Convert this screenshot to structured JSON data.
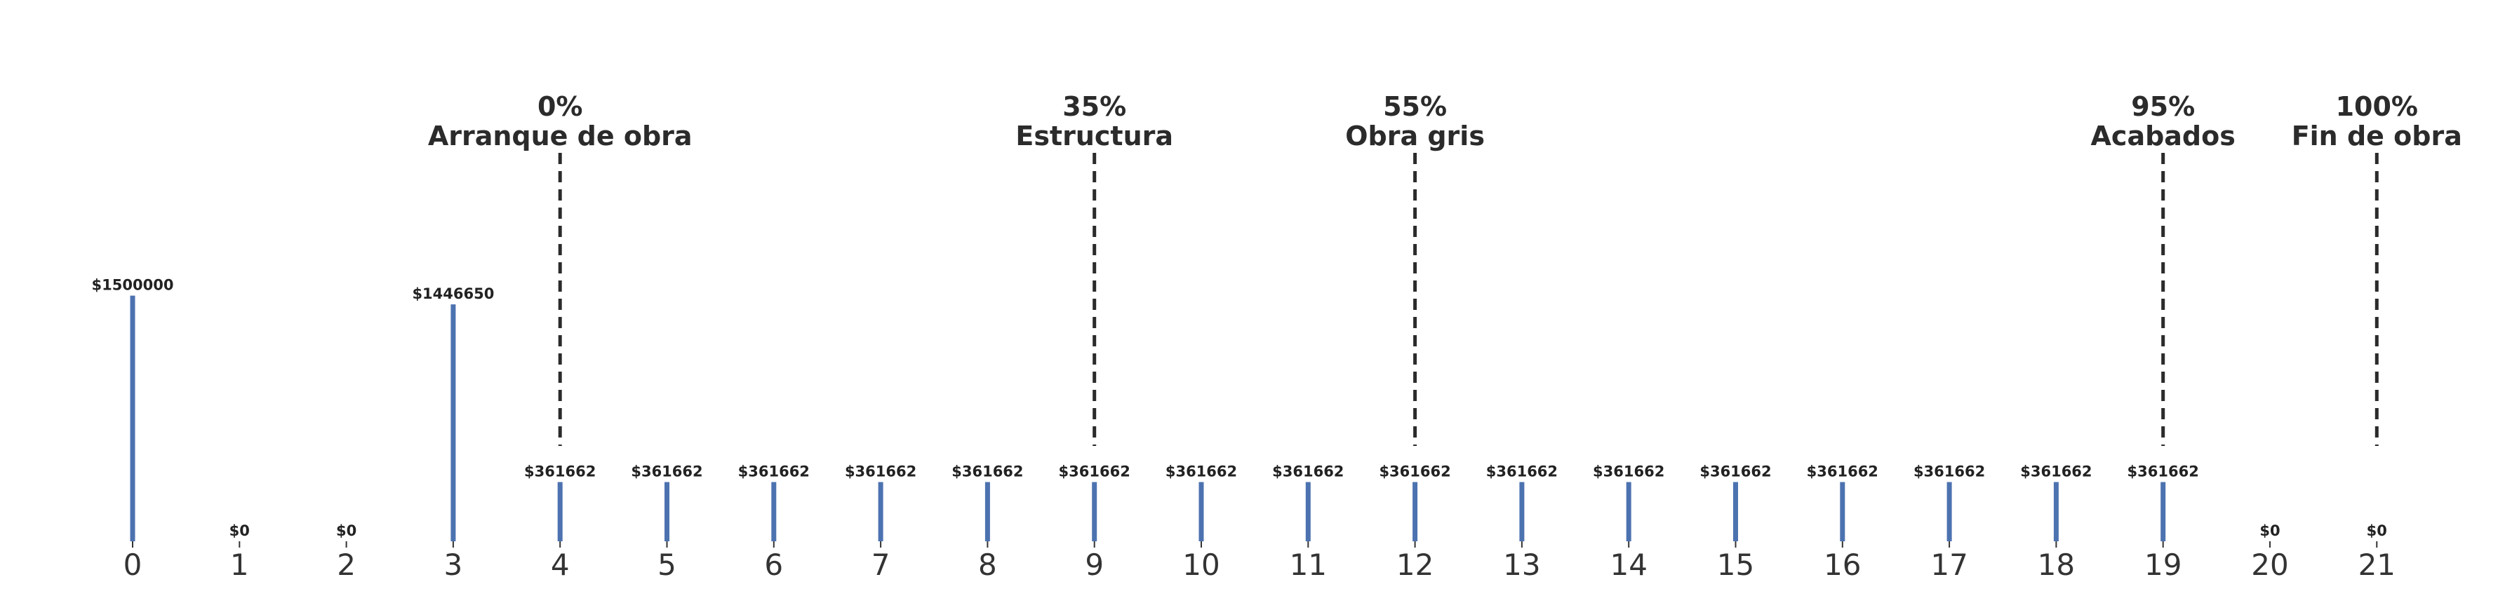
{
  "chart_data": {
    "type": "bar",
    "title": "",
    "xlabel": "",
    "ylabel": "",
    "categories": [
      0,
      1,
      2,
      3,
      4,
      5,
      6,
      7,
      8,
      9,
      10,
      11,
      12,
      13,
      14,
      15,
      16,
      17,
      18,
      19,
      20,
      21
    ],
    "values": [
      1500000,
      0,
      0,
      1446650,
      361662,
      361662,
      361662,
      361662,
      361662,
      361662,
      361662,
      361662,
      361662,
      361662,
      361662,
      361662,
      361662,
      361662,
      361662,
      361662,
      0,
      0
    ],
    "data_labels": [
      "$1500000",
      "$0",
      "$0",
      "$1446650",
      "$361662",
      "$361662",
      "$361662",
      "$361662",
      "$361662",
      "$361662",
      "$361662",
      "$361662",
      "$361662",
      "$361662",
      "$361662",
      "$361662",
      "$361662",
      "$361662",
      "$361662",
      "$361662",
      "$0",
      "$0"
    ],
    "ylim": [
      0,
      2800000
    ],
    "grid": false,
    "bar_color": "#4c72b0",
    "milestones": [
      {
        "x": 4,
        "percent": "0%",
        "label": "Arranque de obra"
      },
      {
        "x": 9,
        "percent": "35%",
        "label": "Estructura"
      },
      {
        "x": 12,
        "percent": "55%",
        "label": "Obra gris"
      },
      {
        "x": 19,
        "percent": "95%",
        "label": "Acabados"
      },
      {
        "x": 21,
        "percent": "100%",
        "label": "Fin de obra"
      }
    ],
    "milestone_line_color": "#2b2b2b"
  }
}
